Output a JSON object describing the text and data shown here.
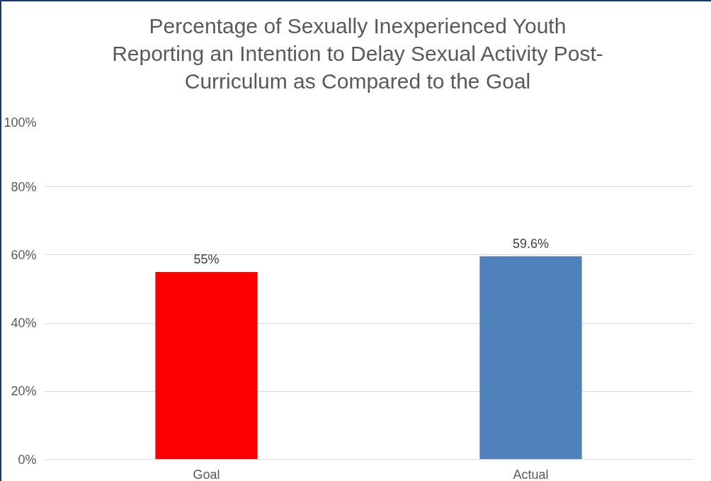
{
  "chart_data": {
    "type": "bar",
    "title": "Percentage of Sexually Inexperienced Youth\nReporting an Intention to Delay Sexual Activity Post-\nCurriculum as Compared to the Goal",
    "categories": [
      "Goal",
      "Actual"
    ],
    "values": [
      55,
      59.6
    ],
    "colors": [
      "#ff0000",
      "#4f81bd"
    ],
    "value_labels": [
      "55%",
      "59.6%"
    ],
    "ylim": [
      0,
      100
    ],
    "yticks": [
      {
        "value": 0,
        "label": "0%"
      },
      {
        "value": 20,
        "label": "20%"
      },
      {
        "value": 40,
        "label": "40%"
      },
      {
        "value": 60,
        "label": "60%"
      },
      {
        "value": 80,
        "label": "80%"
      },
      {
        "value": 100,
        "label": "100%"
      }
    ],
    "grid": "y"
  }
}
